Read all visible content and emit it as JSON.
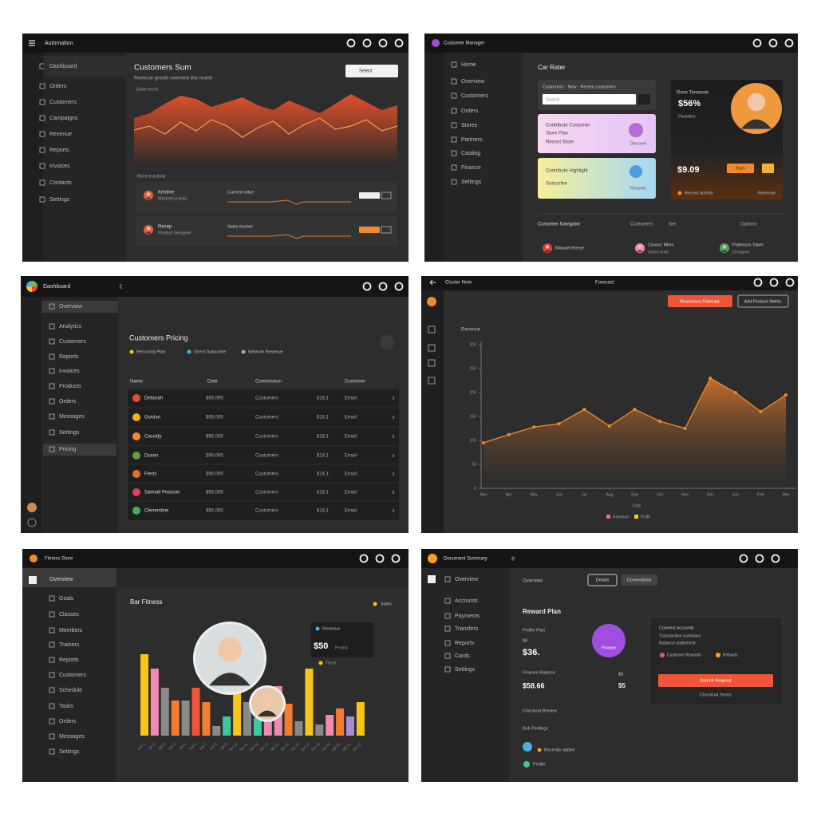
{
  "panels": [
    {
      "app": "Automation",
      "sidebar": [
        "Dashboard",
        "Orders",
        "Customers",
        "Campaigns",
        "Revenue",
        "Reports",
        "Invoices",
        "Contacts",
        "Settings"
      ],
      "heading": "Customers Sum",
      "subheading": "Revenue growth overview this month",
      "select": "Select",
      "chart_title": "Sales trend",
      "chart": {
        "type": "area",
        "ylim": [
          0,
          100
        ],
        "series": [
          {
            "color": "#d9481f",
            "values": [
              60,
              66,
              78,
              88,
              84,
              74,
              80,
              86,
              76,
              70,
              82,
              74,
              66,
              78,
              90,
              80,
              70,
              76
            ]
          },
          {
            "color": "#f5a04a",
            "values": [
              45,
              50,
              40,
              55,
              44,
              58,
              50,
              36,
              48,
              56,
              40,
              52,
              60,
              46,
              50,
              58,
              44,
              50
            ]
          }
        ]
      },
      "section": "Recent activity",
      "rows": [
        {
          "name": "Kristine",
          "role": "Marketing lead",
          "label": "Current value"
        },
        {
          "name": "Recep",
          "role": "Product designer",
          "label": "Sales tracker"
        }
      ]
    },
    {
      "app": "Customer Manager",
      "sidebar": [
        "Home",
        "Overview",
        "Customers",
        "Orders",
        "Stores",
        "Partners",
        "Catalog",
        "Finance",
        "Settings"
      ],
      "heading": "Car Rater",
      "search_title": "Customers · New · Recent customers",
      "search": "Search",
      "card_pink": [
        "Contribute Customer",
        "Store Plan",
        "Recent Store"
      ],
      "card_pink_action": "Discover",
      "card_yellow": [
        "Contribute Highlight",
        "Subscribe"
      ],
      "card_yellow_action": "Resume",
      "profile": {
        "name": "Rove Tomeone",
        "rate": "$56%",
        "place": "Paradise",
        "amount": "$9.09",
        "button": "Earn",
        "activity": "Recent activity",
        "revenue": "Revenue"
      },
      "nav": [
        "Customer Navigator",
        "Customers",
        "Set",
        "Options"
      ],
      "people": [
        [
          "Maxwel Reese"
        ],
        [
          "Connor Miles",
          "Sales lead"
        ],
        [
          "Patterson Yaber",
          "Designer"
        ]
      ]
    },
    {
      "app": "Dashboard",
      "sidebar": [
        "Overview",
        "Analytics",
        "Customers",
        "Reports",
        "Invoices",
        "Products",
        "Orders",
        "Messages",
        "Settings",
        "Pricing"
      ],
      "heading": "Customers Pricing",
      "legend": [
        "Recurring Plan",
        "Direct Subscribe",
        "Network Revenue"
      ],
      "columns": [
        "Name",
        "Date",
        "Commission",
        "Customer"
      ],
      "rows": [
        [
          "Deborah",
          "$95.095",
          "Customers",
          "$18.1",
          "Email"
        ],
        [
          "Gordon",
          "$95.095",
          "Customers",
          "$18.1",
          "Email"
        ],
        [
          "Cassidy",
          "$95.095",
          "Customers",
          "$18.1",
          "Email"
        ],
        [
          "Dusen",
          "$95.095",
          "Customers",
          "$18.1",
          "Email"
        ],
        [
          "Ferris",
          "$95.095",
          "Customers",
          "$18.1",
          "Email"
        ],
        [
          "Samuel Pearson",
          "$95.095",
          "Customers",
          "$18.1",
          "Email"
        ],
        [
          "Clementine",
          "$95.095",
          "Customers",
          "$18.1",
          "Email"
        ]
      ]
    },
    {
      "app": "Cluster Note",
      "tab": "Forecast",
      "buttons": [
        "Resources Forecast",
        "Add Product Metric"
      ],
      "chart": {
        "type": "line",
        "title": "Revenue",
        "x_label": "Date",
        "color": "#f08a2c",
        "categories": [
          "Mar",
          "Apr",
          "May",
          "Jun",
          "Jul",
          "Aug",
          "Sep",
          "Oct",
          "Nov",
          "Dec",
          "Jan",
          "Feb",
          "Mar"
        ],
        "values": [
          95,
          112,
          128,
          135,
          165,
          130,
          165,
          140,
          125,
          230,
          200,
          160,
          195
        ],
        "ylim": [
          0,
          300
        ],
        "yticks": [
          0,
          50,
          100,
          150,
          200,
          250,
          300
        ],
        "legend": [
          {
            "name": "Revenue",
            "color": "#f06a8a"
          },
          {
            "name": "Profit",
            "color": "#f5d320"
          }
        ]
      }
    },
    {
      "app": "Fitness Store",
      "overview": "Overview",
      "sidebar": [
        "Goals",
        "Classes",
        "Members",
        "Trainers",
        "Reports",
        "Customers",
        "Schedule",
        "Tasks",
        "Orders",
        "Messages",
        "Settings"
      ],
      "heading": "Bar Fitness",
      "legend": "Sales",
      "card": {
        "title": "Revenue",
        "amount": "$50",
        "tag": "Promo",
        "trend": "Trend"
      },
      "chart": {
        "type": "bar",
        "ylim": [
          0,
          110
        ],
        "categories": [
          "Set 1",
          "Set 2",
          "Set 3",
          "Set 4",
          "Set 5",
          "Set 6",
          "Set 7",
          "Set 8",
          "Set 9",
          "Set 10",
          "Set 11",
          "Set 12",
          "Set 13",
          "Set 14",
          "Set 15",
          "Set 16",
          "Set 17",
          "Set 18",
          "Set 19",
          "Set 20",
          "Set 21",
          "Set 22"
        ],
        "values": [
          102,
          84,
          60,
          44,
          44,
          60,
          42,
          12,
          24,
          80,
          42,
          22,
          47,
          62,
          40,
          18,
          84,
          14,
          26,
          34,
          24,
          42
        ],
        "colors": [
          "#f5c518",
          "#f08ab0",
          "#8a8a8a",
          "#f47c30",
          "#8a8a8a",
          "#f0553a",
          "#f47c30",
          "#8a8a8a",
          "#3cc9a0",
          "#f5c518",
          "#8a8a8a",
          "#3cc9a0",
          "#f08ab0",
          "#f08ab0",
          "#f47c30",
          "#8a8a8a",
          "#f5c518",
          "#8a8a8a",
          "#f08ab0",
          "#f47c30",
          "#a98ad8",
          "#f5c518"
        ]
      }
    },
    {
      "app": "Document Summary",
      "sidebar": [
        "Overview",
        "Accounts",
        "Payments",
        "Transfers",
        "Reports",
        "Cards",
        "Settings"
      ],
      "overview": "Overview",
      "buttons": [
        "Details",
        "Connections"
      ],
      "heading": "Reward Plan",
      "profile_label": "Profile Plan",
      "profile_small": "$8",
      "profile_amount": "$36.",
      "badge": "Finance",
      "balance_label": "Finance Balance",
      "balance": "$58.66",
      "balance_side": [
        "$8",
        "$5"
      ],
      "review": "Checkout Review",
      "person": "Bob Feelings",
      "recent": "Recently added",
      "profile": "Profile",
      "card": {
        "title": "Connect accounts",
        "lines": [
          "Transaction summary",
          "Balance statement"
        ],
        "chips": [
          "Customer Rewards",
          "Refunds"
        ],
        "button": "Submit Request",
        "foot": "Checkout Terms"
      }
    }
  ]
}
